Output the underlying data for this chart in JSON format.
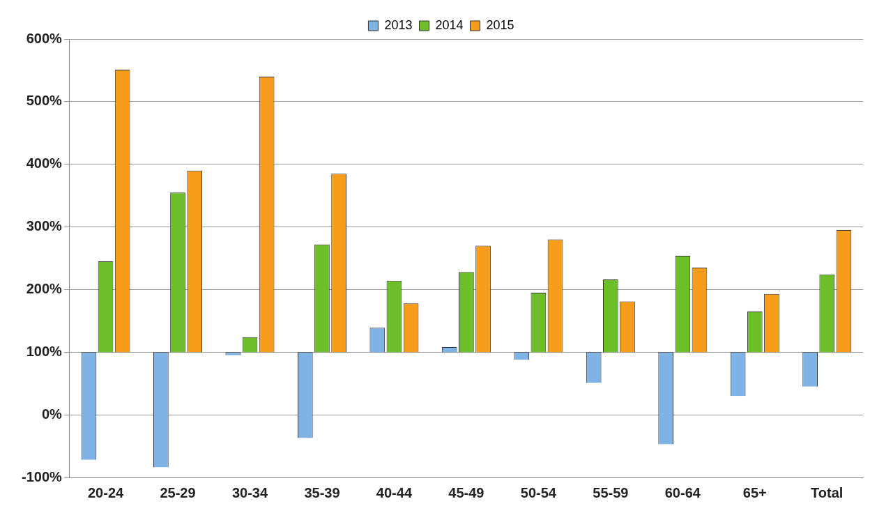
{
  "chart_data": {
    "type": "bar",
    "categories": [
      "20-24",
      "25-29",
      "30-34",
      "35-39",
      "40-44",
      "45-49",
      "50-54",
      "55-59",
      "60-64",
      "65+",
      "Total"
    ],
    "series": [
      {
        "name": "2013",
        "color": "#7fb2e5",
        "base": [
          100,
          100,
          100,
          100,
          100,
          100,
          100,
          100,
          100,
          100,
          100
        ],
        "values": [
          -172,
          -184,
          -5,
          -137,
          39,
          8,
          -12,
          -49,
          -147,
          -70,
          -55
        ]
      },
      {
        "name": "2014",
        "color": "#6cbf2a",
        "base": [
          100,
          100,
          100,
          100,
          100,
          100,
          100,
          100,
          100,
          100,
          100
        ],
        "values": [
          145,
          255,
          24,
          172,
          114,
          128,
          95,
          116,
          154,
          65,
          124
        ]
      },
      {
        "name": "2015",
        "color": "#f89c1c",
        "base": [
          100,
          100,
          100,
          100,
          100,
          100,
          100,
          100,
          100,
          100,
          100
        ],
        "values": [
          451,
          290,
          440,
          285,
          78,
          170,
          180,
          81,
          135,
          93,
          195
        ]
      }
    ],
    "ylim": [
      -100,
      600
    ],
    "yticks": [
      {
        "value": -100,
        "label": "-100%"
      },
      {
        "value": 0,
        "label": "0%"
      },
      {
        "value": 100,
        "label": "100%"
      },
      {
        "value": 200,
        "label": "200%"
      },
      {
        "value": 300,
        "label": "300%"
      },
      {
        "value": 400,
        "label": "400%"
      },
      {
        "value": 500,
        "label": "500%"
      },
      {
        "value": 600,
        "label": "600%"
      }
    ],
    "grid": "y",
    "legend": "top"
  }
}
